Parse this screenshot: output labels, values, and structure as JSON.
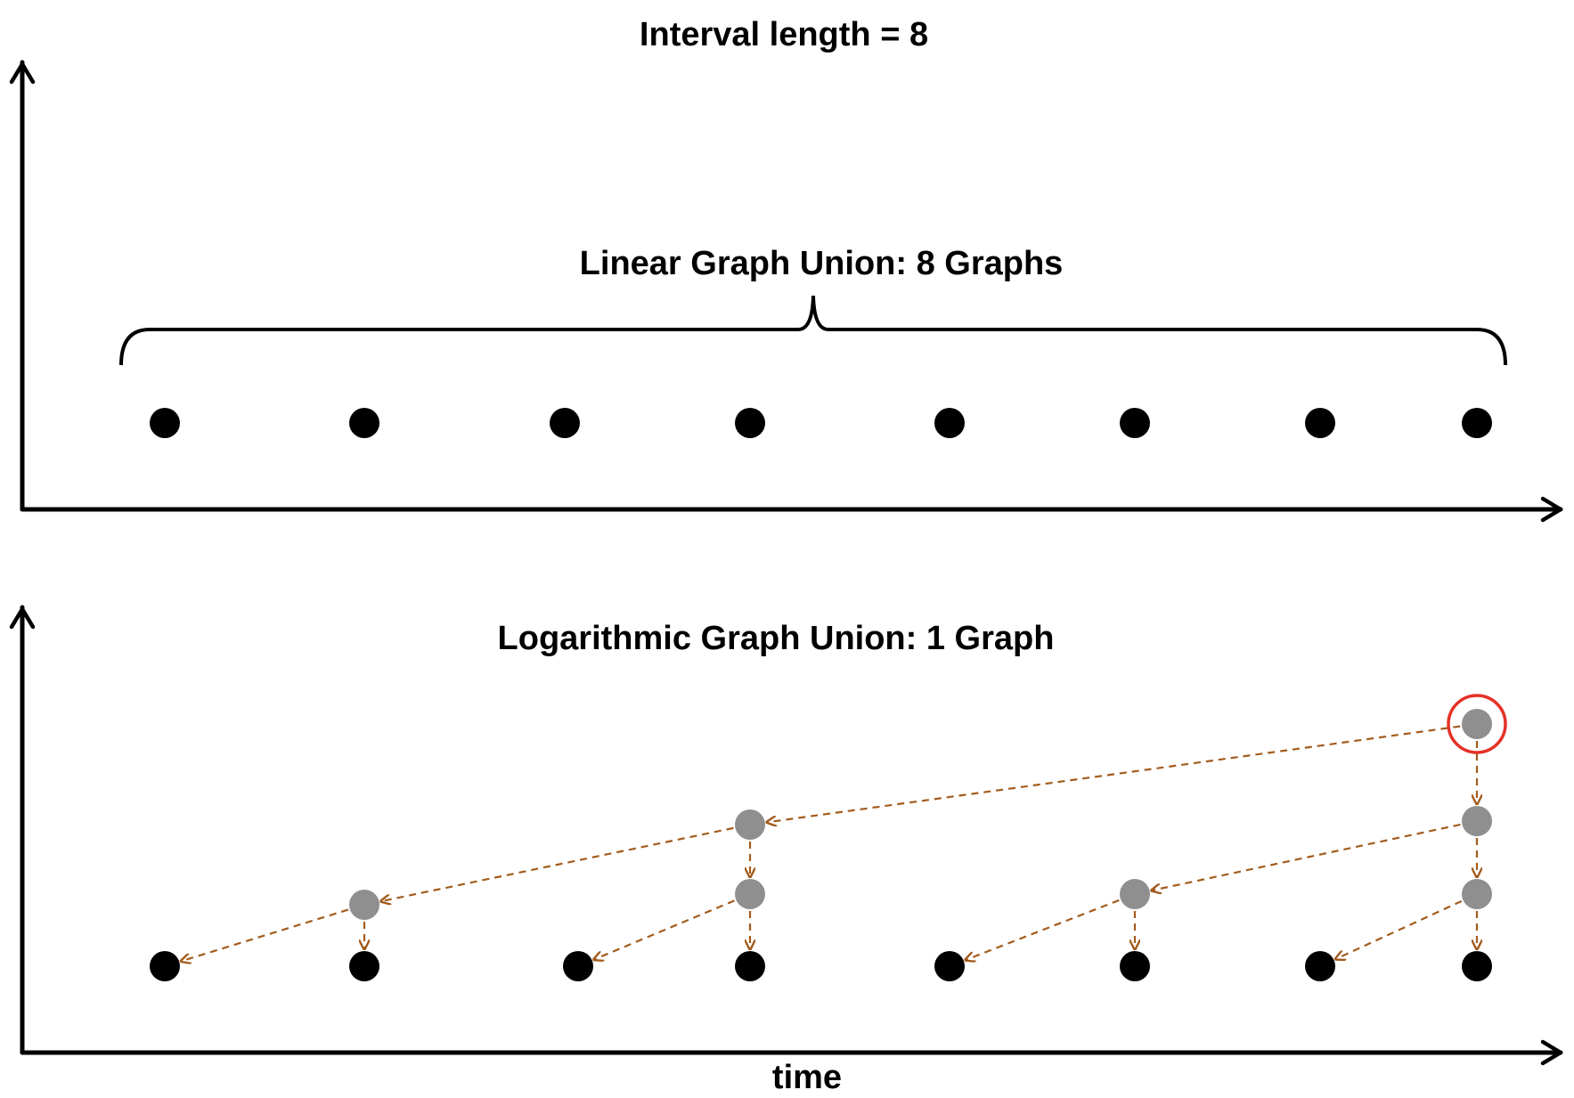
{
  "title": "Interval length = 8",
  "linear": {
    "label": "Linear Graph Union: 8 Graphs"
  },
  "logarithmic": {
    "label": "Logarithmic Graph Union: 1 Graph"
  },
  "axis_label": "time",
  "colors": {
    "axis": "#000000",
    "snapshot_node": "#000000",
    "union_node": "#8f8f8f",
    "edge": "#a35c1c",
    "highlight": "#e53127"
  }
}
